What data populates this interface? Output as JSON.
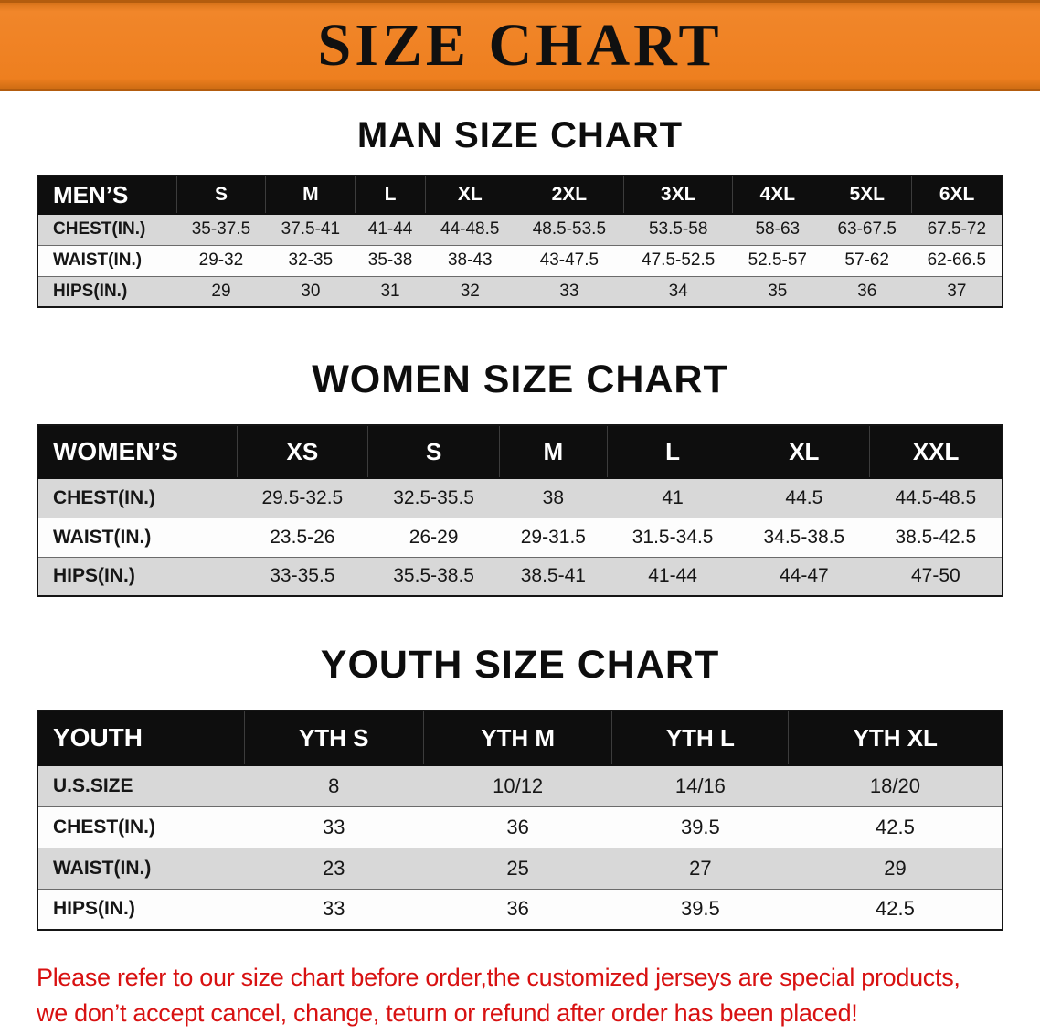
{
  "banner": {
    "title": "SIZE CHART"
  },
  "colors": {
    "banner_bg": "#ee7f1f",
    "table_header_bg": "#0e0e0e",
    "row_alt_bg": "#d8d8d8",
    "disclaimer_text": "#d81111"
  },
  "men": {
    "heading": "MAN SIZE CHART",
    "table": {
      "header": [
        "MEN’S",
        "S",
        "M",
        "L",
        "XL",
        "2XL",
        "3XL",
        "4XL",
        "5XL",
        "6XL"
      ],
      "rows": [
        [
          "CHEST(IN.)",
          "35-37.5",
          "37.5-41",
          "41-44",
          "44-48.5",
          "48.5-53.5",
          "53.5-58",
          "58-63",
          "63-67.5",
          "67.5-72"
        ],
        [
          "WAIST(IN.)",
          "29-32",
          "32-35",
          "35-38",
          "38-43",
          "43-47.5",
          "47.5-52.5",
          "52.5-57",
          "57-62",
          "62-66.5"
        ],
        [
          "HIPS(IN.)",
          "29",
          "30",
          "31",
          "32",
          "33",
          "34",
          "35",
          "36",
          "37"
        ]
      ]
    }
  },
  "women": {
    "heading": "WOMEN SIZE CHART",
    "table": {
      "header": [
        "WOMEN’S",
        "XS",
        "S",
        "M",
        "L",
        "XL",
        "XXL"
      ],
      "rows": [
        [
          "CHEST(IN.)",
          "29.5-32.5",
          "32.5-35.5",
          "38",
          "41",
          "44.5",
          "44.5-48.5"
        ],
        [
          "WAIST(IN.)",
          "23.5-26",
          "26-29",
          "29-31.5",
          "31.5-34.5",
          "34.5-38.5",
          "38.5-42.5"
        ],
        [
          "HIPS(IN.)",
          "33-35.5",
          "35.5-38.5",
          "38.5-41",
          "41-44",
          "44-47",
          "47-50"
        ]
      ]
    }
  },
  "youth": {
    "heading": "YOUTH SIZE CHART",
    "table": {
      "header": [
        "YOUTH",
        "YTH S",
        "YTH M",
        "YTH L",
        "YTH XL"
      ],
      "rows": [
        [
          "U.S.SIZE",
          "8",
          "10/12",
          "14/16",
          "18/20"
        ],
        [
          "CHEST(IN.)",
          "33",
          "36",
          "39.5",
          "42.5"
        ],
        [
          "WAIST(IN.)",
          "23",
          "25",
          "27",
          "29"
        ],
        [
          "HIPS(IN.)",
          "33",
          "36",
          "39.5",
          "42.5"
        ]
      ]
    }
  },
  "disclaimer": {
    "line1": "Please refer to our size chart before order,the customized jerseys are special products,",
    "line2": "we don’t accept cancel, change, teturn or refund after order has been placed!"
  }
}
